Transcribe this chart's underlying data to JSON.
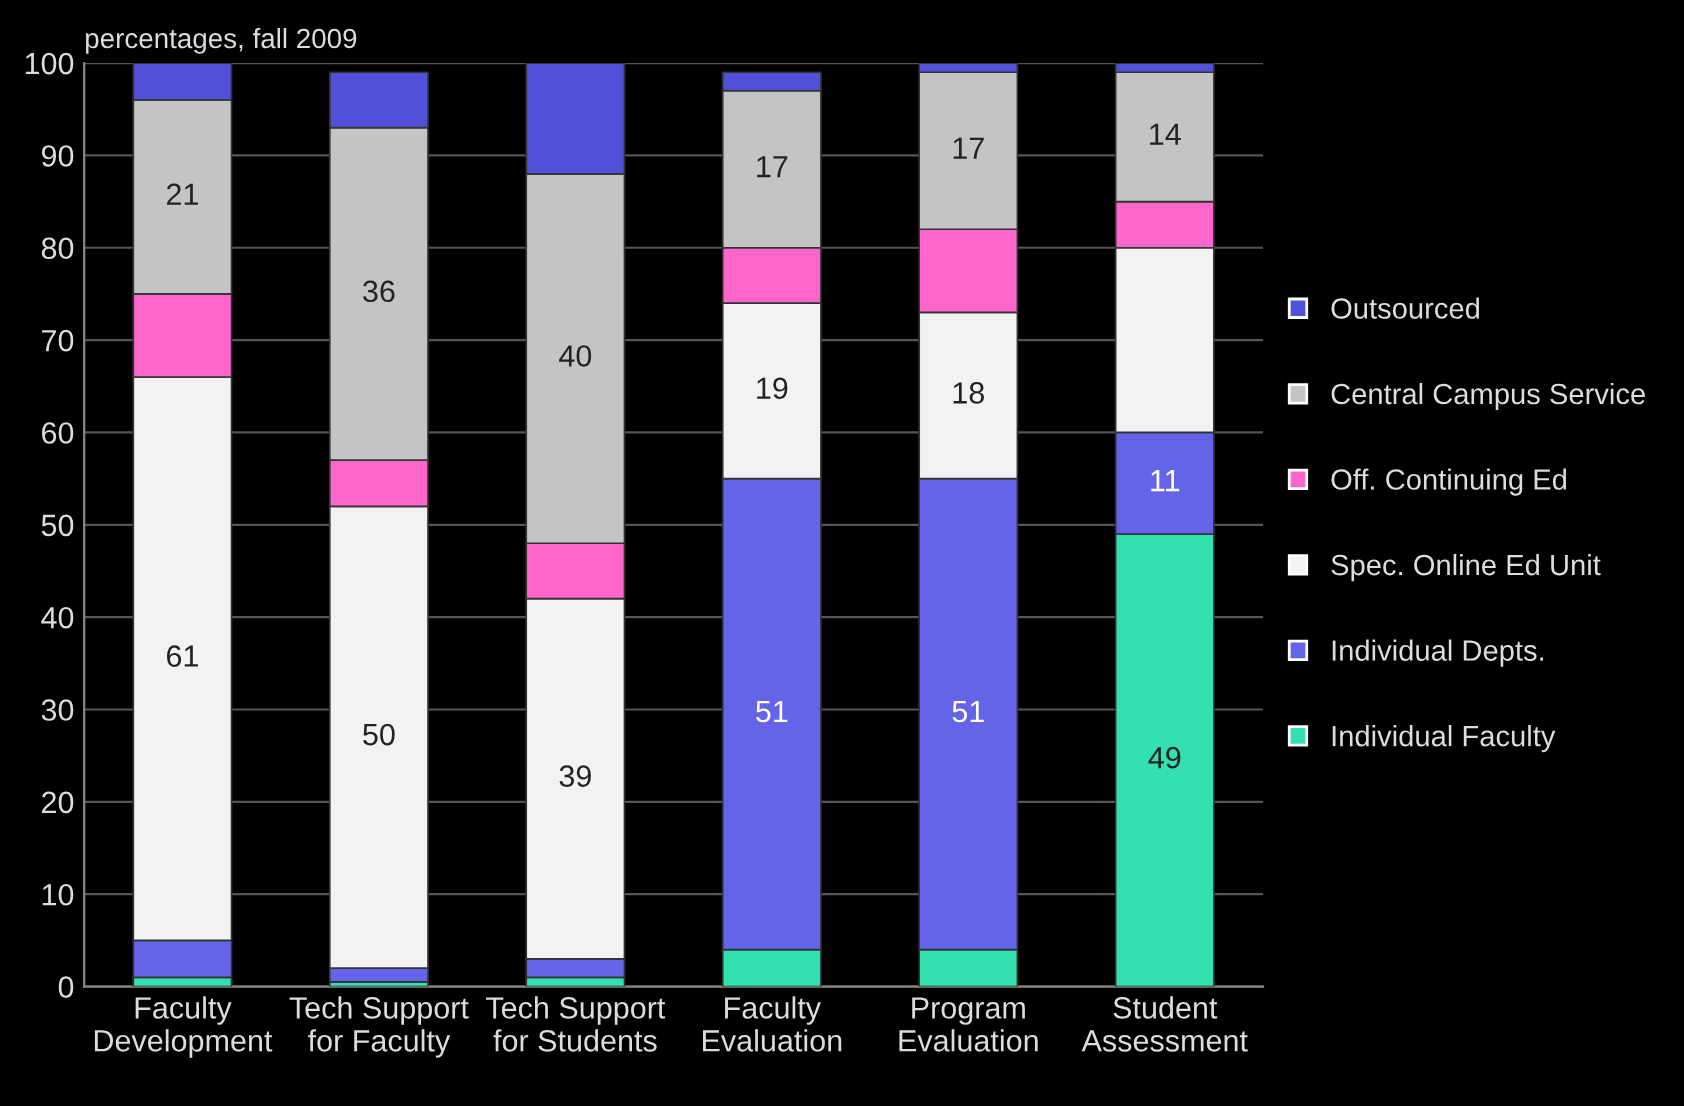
{
  "chart_data": {
    "type": "bar",
    "stacked": true,
    "ylabel": "percentages, fall 2009",
    "categories": [
      "Faculty\nDevelopment",
      "Tech Support\nfor Faculty",
      "Tech Support\nfor Students",
      "Faculty\nEvaluation",
      "Program\nEvaluation",
      "Student\nAssessment"
    ],
    "series": [
      {
        "name": "Individual Faculty",
        "color": "#33e0b0",
        "values": [
          1,
          0.5,
          1,
          4,
          4,
          49
        ],
        "value_labels": [
          null,
          null,
          null,
          null,
          null,
          "49"
        ]
      },
      {
        "name": "Individual Depts.",
        "color": "#6464e8",
        "values": [
          4,
          1.5,
          2,
          51,
          51,
          11
        ],
        "value_labels": [
          null,
          null,
          null,
          "51",
          "51",
          "11"
        ]
      },
      {
        "name": "Spec. Online Ed Unit",
        "color": "#f2f2f2",
        "values": [
          61,
          50,
          39,
          19,
          18,
          20
        ],
        "value_labels": [
          "61",
          "50",
          "39",
          "19",
          "18",
          null
        ]
      },
      {
        "name": "Off. Continuing Ed",
        "color": "#ff66cc",
        "values": [
          9,
          5,
          6,
          6,
          9,
          5
        ],
        "value_labels": [
          null,
          null,
          null,
          null,
          null,
          null
        ]
      },
      {
        "name": "Central Campus Service",
        "color": "#c4c4c4",
        "values": [
          21,
          36,
          40,
          17,
          17,
          14
        ],
        "value_labels": [
          "21",
          "36",
          "40",
          "17",
          "17",
          "14"
        ]
      },
      {
        "name": "Outsourced",
        "color": "#5050d8",
        "values": [
          4,
          6,
          12,
          2,
          1,
          1
        ],
        "value_labels": [
          null,
          null,
          null,
          null,
          null,
          null
        ]
      }
    ],
    "ylim": [
      0,
      100
    ],
    "yticks": [
      0,
      10,
      20,
      30,
      40,
      50,
      60,
      70,
      80,
      90,
      100
    ],
    "grid": "y",
    "legend": "right"
  }
}
